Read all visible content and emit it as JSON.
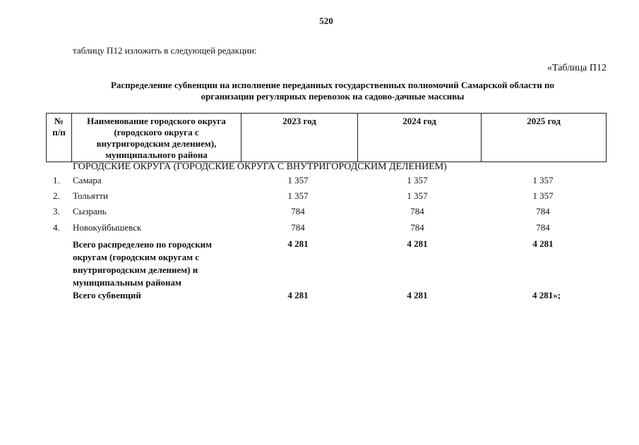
{
  "page_number": "520",
  "intro": "таблицу П12 изложить в следующей редакции:",
  "table_label": "«Таблица П12",
  "title_line1": "Распределение субвенции на исполнение переданных государственных полномочий Самарской области по",
  "title_line2": "организации регулярных перевозок на садово-дачные массивы",
  "header": {
    "num": [
      "№",
      "п/п"
    ],
    "name": [
      "Наимеиование городского округа",
      "(городского округа с",
      "внутригородским делением),",
      "муниципального района"
    ],
    "y2023": "2023 год",
    "y2024": "2024 год",
    "y2025": "2025 год"
  },
  "section": "ГОРОДСКИЕ ОКРУГА (ГОРОДСКИЕ ОКРУГА С ВНУТРИГОРОДСКИМ ДЕЛЕНИЕМ)",
  "rows": [
    {
      "num": "1.",
      "name": "Самара",
      "v2023": "1 357",
      "v2024": "1 357",
      "v2025": "1 357"
    },
    {
      "num": "2.",
      "name": "Тольятти",
      "v2023": "1 357",
      "v2024": "1 357",
      "v2025": "1 357"
    },
    {
      "num": "3.",
      "name": "Сызрань",
      "v2023": "784",
      "v2024": "784",
      "v2025": "784"
    },
    {
      "num": "4.",
      "name": "Новокуйбышевск",
      "v2023": "784",
      "v2024": "784",
      "v2025": "784"
    }
  ],
  "subtotal": {
    "name": [
      "Всего распределено по городским",
      "округам (городским округам с",
      "внутригородским делением) и",
      "муниципальным районам"
    ],
    "v2023": "4 281",
    "v2024": "4 281",
    "v2025": "4 281"
  },
  "total": {
    "name": "Всего субвенций",
    "v2023": "4 281",
    "v2024": "4 281",
    "v2025": "4 281»;"
  }
}
